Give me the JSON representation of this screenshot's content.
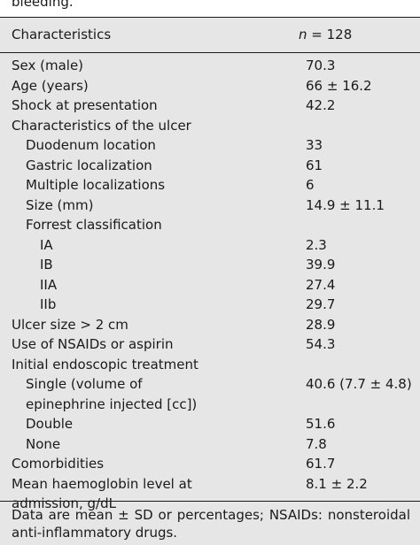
{
  "caption": "bleeding.",
  "table": {
    "header": {
      "characteristics": "Characteristics",
      "n_label": "n",
      "n_value": " = 128"
    },
    "rows": [
      {
        "label": "Sex (male)",
        "value": "70.3",
        "level": 0
      },
      {
        "label": "Age (years)",
        "value": "66 ± 16.2",
        "level": 0
      },
      {
        "label": "Shock at presentation",
        "value": "42.2",
        "level": 0
      },
      {
        "label": "Characteristics of the ulcer",
        "value": "",
        "level": 0
      },
      {
        "label": "Duodenum location",
        "value": "33",
        "level": 1
      },
      {
        "label": "Gastric localization",
        "value": "61",
        "level": 1
      },
      {
        "label": "Multiple localizations",
        "value": "6",
        "level": 1
      },
      {
        "label": "Size (mm)",
        "value": "14.9 ± 11.1",
        "level": 1
      },
      {
        "label": "Forrest classification",
        "value": "",
        "level": 1
      },
      {
        "label": "IA",
        "value": "2.3",
        "level": 2
      },
      {
        "label": "IB",
        "value": "39.9",
        "level": 2
      },
      {
        "label": "IIA",
        "value": "27.4",
        "level": 2
      },
      {
        "label": "IIb",
        "value": "29.7",
        "level": 2
      },
      {
        "label": "Ulcer size > 2 cm",
        "value": "28.9",
        "level": 0
      },
      {
        "label": "Use of NSAIDs or aspirin",
        "value": "54.3",
        "level": 0
      },
      {
        "label": "Initial endoscopic treatment",
        "value": "",
        "level": 0
      },
      {
        "label": "Single (volume of",
        "value": "40.6 (7.7 ± 4.8)",
        "level": 1
      },
      {
        "label": "epinephrine injected [cc])",
        "value": "",
        "level": 1
      },
      {
        "label": "Double",
        "value": "51.6",
        "level": 1
      },
      {
        "label": "None",
        "value": "7.8",
        "level": 1
      },
      {
        "label": "Comorbidities",
        "value": "61.7",
        "level": 0
      },
      {
        "label": "Mean haemoglobin level at",
        "value": "8.1 ± 2.2",
        "level": 0
      },
      {
        "label": "admission, g/dL",
        "value": "",
        "level": 0
      }
    ],
    "footnote": "Data are mean ± SD or percentages; NSAIDs: nonsteroidal anti-inflammatory drugs."
  }
}
